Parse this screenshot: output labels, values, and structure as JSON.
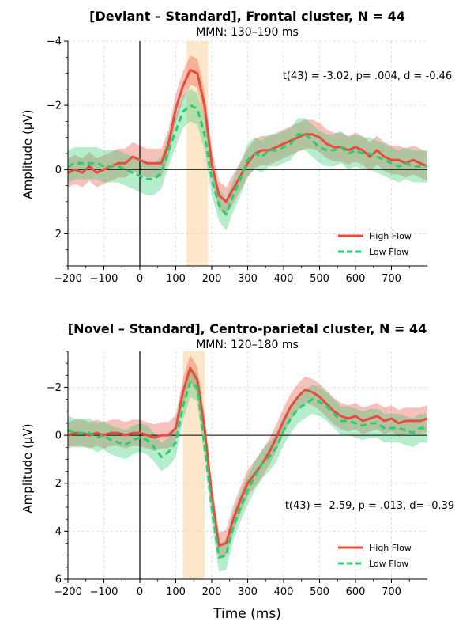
{
  "chart_data": [
    {
      "type": "line",
      "title": "[Deviant – Standard], Frontal cluster, N = 44",
      "subtitle": "MMN: 130–190 ms",
      "xlabel": "",
      "ylabel": "Amplitude (µV)",
      "xlim": [
        -200,
        800
      ],
      "ylim": [
        3,
        -4
      ],
      "y_inverted": true,
      "xticks": [
        "−200",
        "−100",
        "0",
        "100",
        "200",
        "300",
        "400",
        "500",
        "600",
        "700"
      ],
      "yticks": [
        "−4",
        "−2",
        "0",
        "2"
      ],
      "grid": true,
      "legend_position": "lower-right",
      "annotation": "t(43) = -3.02, p= .004, d = -0.46",
      "mmn_window": [
        130,
        190
      ],
      "x": [
        -200,
        -180,
        -160,
        -140,
        -120,
        -100,
        -80,
        -60,
        -40,
        -20,
        0,
        20,
        40,
        60,
        80,
        100,
        120,
        140,
        160,
        180,
        200,
        220,
        240,
        260,
        280,
        300,
        320,
        340,
        360,
        380,
        400,
        420,
        440,
        460,
        480,
        500,
        520,
        540,
        560,
        580,
        600,
        620,
        640,
        660,
        680,
        700,
        720,
        740,
        760,
        780,
        800
      ],
      "series": [
        {
          "name": "High Flow",
          "color": "#e74c3c",
          "dash": "solid",
          "values": [
            0.1,
            0.0,
            0.1,
            -0.1,
            0.1,
            0.0,
            -0.1,
            -0.2,
            -0.2,
            -0.4,
            -0.3,
            -0.2,
            -0.2,
            -0.2,
            -0.8,
            -1.9,
            -2.6,
            -3.1,
            -3.0,
            -2.0,
            -0.2,
            0.8,
            1.0,
            0.6,
            0.2,
            -0.2,
            -0.5,
            -0.6,
            -0.6,
            -0.7,
            -0.8,
            -0.9,
            -1.0,
            -1.1,
            -1.1,
            -1.0,
            -0.8,
            -0.7,
            -0.7,
            -0.6,
            -0.7,
            -0.6,
            -0.4,
            -0.6,
            -0.4,
            -0.3,
            -0.3,
            -0.2,
            -0.3,
            -0.2,
            -0.1
          ]
        },
        {
          "name": "Low Flow",
          "color": "#2ecc71",
          "dash": "dashed",
          "values": [
            -0.1,
            -0.2,
            -0.2,
            -0.2,
            -0.2,
            -0.1,
            -0.1,
            -0.1,
            0.0,
            0.1,
            0.2,
            0.3,
            0.3,
            0.1,
            -0.6,
            -1.2,
            -1.8,
            -2.0,
            -1.9,
            -1.1,
            0.3,
            1.1,
            1.4,
            0.8,
            0.3,
            -0.3,
            -0.5,
            -0.4,
            -0.6,
            -0.6,
            -0.7,
            -0.8,
            -1.1,
            -1.1,
            -0.9,
            -0.7,
            -0.6,
            -0.6,
            -0.7,
            -0.5,
            -0.6,
            -0.5,
            -0.5,
            -0.4,
            -0.3,
            -0.2,
            -0.1,
            -0.2,
            -0.1,
            -0.1,
            -0.1
          ]
        }
      ]
    },
    {
      "type": "line",
      "title": "[Novel – Standard], Centro-parietal cluster, N = 44",
      "subtitle": "MMN: 120–180 ms",
      "xlabel": "Time (ms)",
      "ylabel": "Amplitude (µV)",
      "xlim": [
        -200,
        800
      ],
      "ylim": [
        6,
        -3.5
      ],
      "y_inverted": true,
      "xticks": [
        "−200",
        "−100",
        "0",
        "100",
        "200",
        "300",
        "400",
        "500",
        "600",
        "700"
      ],
      "yticks": [
        "−2",
        "0",
        "2",
        "4",
        "6"
      ],
      "grid": true,
      "legend_position": "lower-right",
      "annotation": "t(43) = -2.59, p = .013, d= -0.39",
      "mmn_window": [
        120,
        180
      ],
      "x": [
        -200,
        -180,
        -160,
        -140,
        -120,
        -100,
        -80,
        -60,
        -40,
        -20,
        0,
        20,
        40,
        60,
        80,
        100,
        120,
        140,
        160,
        180,
        200,
        220,
        240,
        260,
        280,
        300,
        320,
        340,
        360,
        380,
        400,
        420,
        440,
        460,
        480,
        500,
        520,
        540,
        560,
        580,
        600,
        620,
        640,
        660,
        680,
        700,
        720,
        740,
        760,
        780,
        800
      ],
      "series": [
        {
          "name": "High Flow",
          "color": "#e74c3c",
          "dash": "solid",
          "values": [
            0.0,
            -0.1,
            -0.1,
            0.0,
            -0.1,
            0.0,
            -0.1,
            -0.1,
            0.0,
            -0.1,
            -0.1,
            0.0,
            0.1,
            0.0,
            0.0,
            -0.3,
            -1.8,
            -2.8,
            -2.3,
            -0.3,
            2.5,
            4.6,
            4.5,
            3.5,
            2.7,
            2.0,
            1.6,
            1.2,
            0.7,
            0.1,
            -0.6,
            -1.2,
            -1.6,
            -1.9,
            -1.8,
            -1.6,
            -1.3,
            -1.0,
            -0.8,
            -0.7,
            -0.8,
            -0.6,
            -0.7,
            -0.8,
            -0.6,
            -0.7,
            -0.5,
            -0.6,
            -0.6,
            -0.6,
            -0.7
          ]
        },
        {
          "name": "Low Flow",
          "color": "#2ecc71",
          "dash": "dashed",
          "values": [
            -0.2,
            -0.1,
            -0.1,
            -0.1,
            0.1,
            0.0,
            0.2,
            0.3,
            0.4,
            0.2,
            0.1,
            0.2,
            0.5,
            0.9,
            0.7,
            0.3,
            -1.2,
            -2.2,
            -2.0,
            0.4,
            3.0,
            5.1,
            5.0,
            3.8,
            3.0,
            2.3,
            1.7,
            1.2,
            0.9,
            0.5,
            -0.2,
            -0.7,
            -1.1,
            -1.3,
            -1.5,
            -1.4,
            -1.2,
            -0.9,
            -0.6,
            -0.6,
            -0.5,
            -0.4,
            -0.5,
            -0.5,
            -0.3,
            -0.3,
            -0.3,
            -0.2,
            -0.1,
            -0.3,
            -0.3
          ]
        }
      ]
    }
  ]
}
